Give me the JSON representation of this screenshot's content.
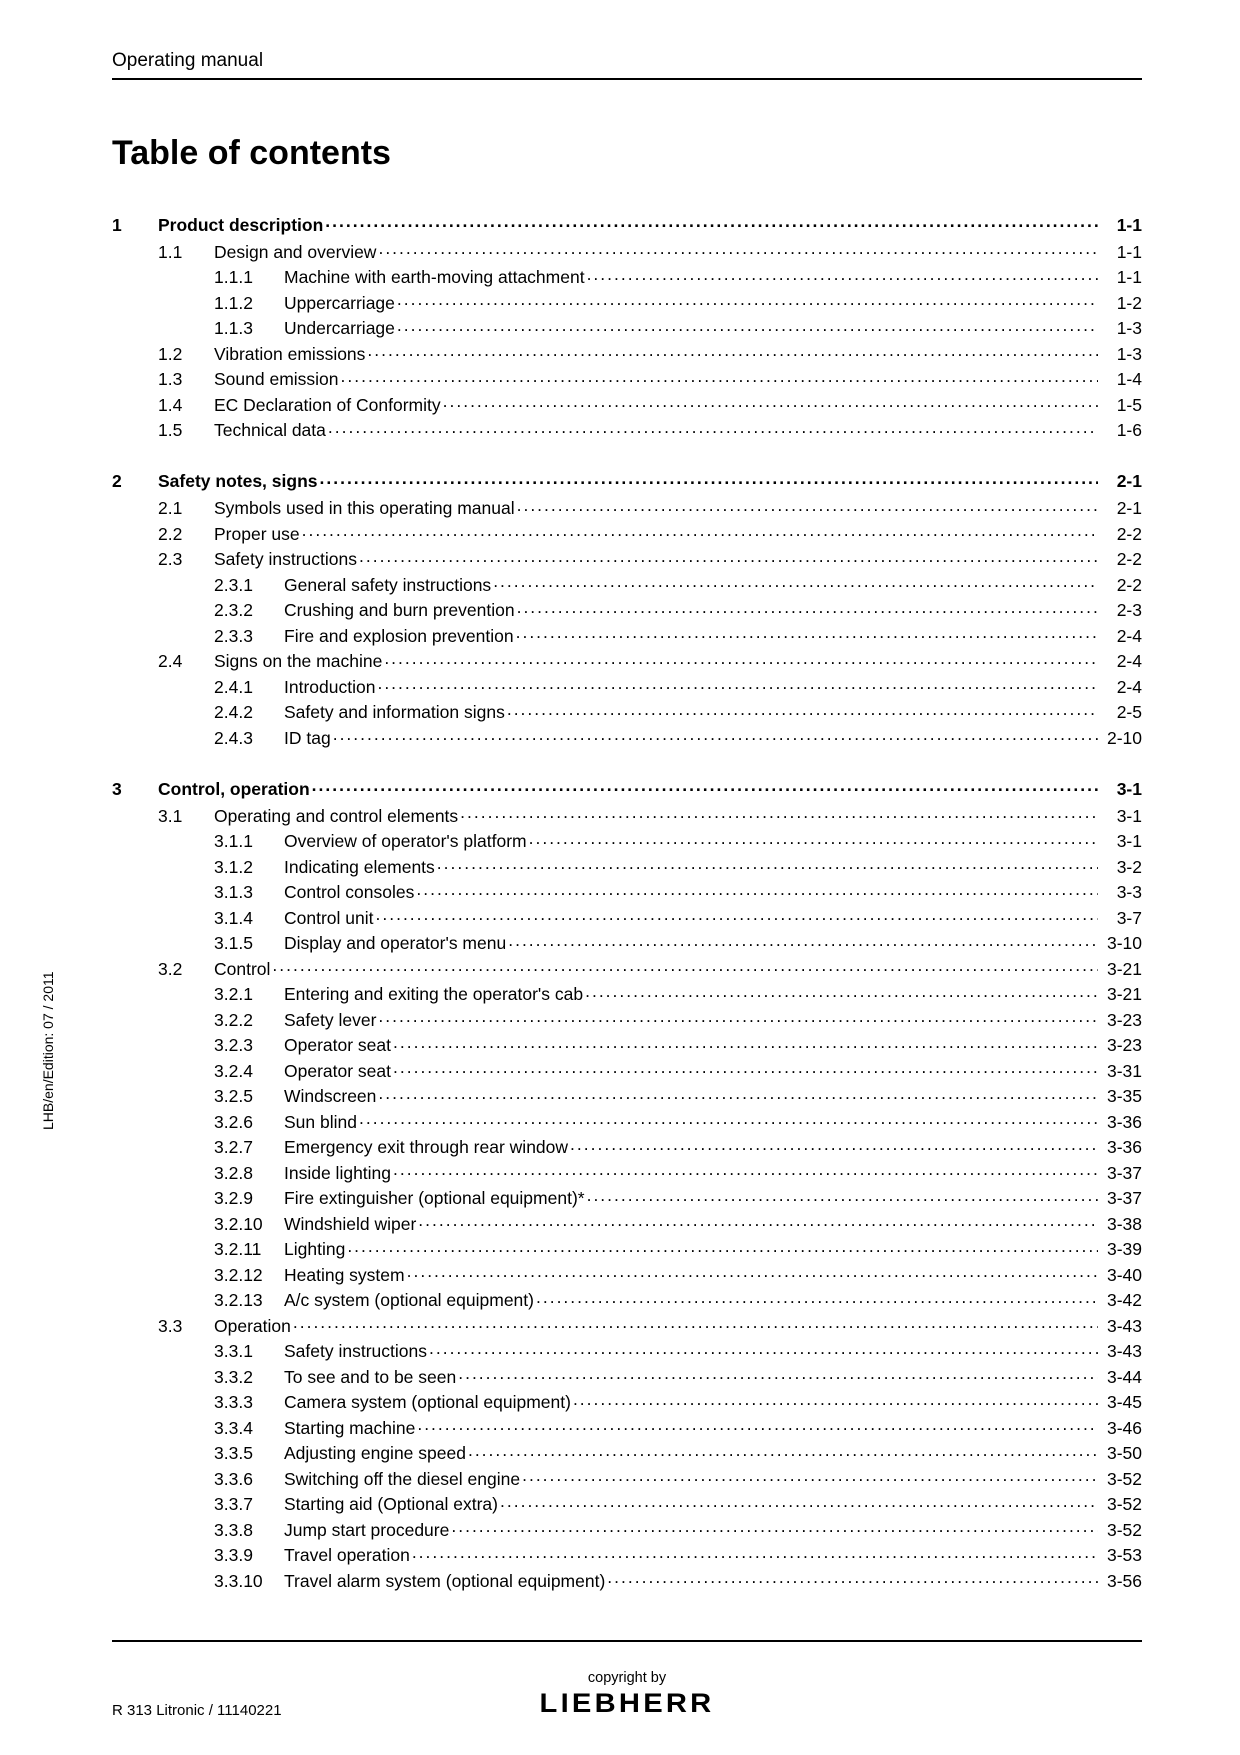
{
  "header": "Operating manual",
  "title": "Table of contents",
  "side_text": "LHB/en/Edition: 07 / 2011",
  "footer": {
    "left": "R 313 Litronic / 11140221",
    "copyright": "copyright by",
    "brand": "LIEBHERR"
  },
  "toc": [
    {
      "level": 1,
      "num": "1",
      "label": "Product description",
      "page": "1-1"
    },
    {
      "level": 2,
      "num": "1.1",
      "label": "Design and overview",
      "page": "1-1"
    },
    {
      "level": 3,
      "num": "1.1.1",
      "label": "Machine with earth-moving attachment",
      "page": "1-1"
    },
    {
      "level": 3,
      "num": "1.1.2",
      "label": "Uppercarriage",
      "page": "1-2"
    },
    {
      "level": 3,
      "num": "1.1.3",
      "label": "Undercarriage",
      "page": "1-3"
    },
    {
      "level": 2,
      "num": "1.2",
      "label": "Vibration emissions",
      "page": "1-3"
    },
    {
      "level": 2,
      "num": "1.3",
      "label": "Sound emission",
      "page": "1-4"
    },
    {
      "level": 2,
      "num": "1.4",
      "label": "EC Declaration of Conformity",
      "page": "1-5"
    },
    {
      "level": 2,
      "num": "1.5",
      "label": "Technical data",
      "page": "1-6"
    },
    {
      "level": 1,
      "num": "2",
      "label": "Safety notes, signs",
      "page": "2-1"
    },
    {
      "level": 2,
      "num": "2.1",
      "label": "Symbols used in this operating manual",
      "page": "2-1"
    },
    {
      "level": 2,
      "num": "2.2",
      "label": "Proper use",
      "page": "2-2"
    },
    {
      "level": 2,
      "num": "2.3",
      "label": "Safety instructions",
      "page": "2-2"
    },
    {
      "level": 3,
      "num": "2.3.1",
      "label": "General safety instructions",
      "page": "2-2"
    },
    {
      "level": 3,
      "num": "2.3.2",
      "label": "Crushing and burn prevention",
      "page": "2-3"
    },
    {
      "level": 3,
      "num": "2.3.3",
      "label": "Fire and explosion prevention",
      "page": "2-4"
    },
    {
      "level": 2,
      "num": "2.4",
      "label": "Signs on the machine",
      "page": "2-4"
    },
    {
      "level": 3,
      "num": "2.4.1",
      "label": "Introduction",
      "page": "2-4"
    },
    {
      "level": 3,
      "num": "2.4.2",
      "label": "Safety and information signs",
      "page": "2-5"
    },
    {
      "level": 3,
      "num": "2.4.3",
      "label": "ID tag",
      "page": "2-10"
    },
    {
      "level": 1,
      "num": "3",
      "label": "Control, operation",
      "page": "3-1"
    },
    {
      "level": 2,
      "num": "3.1",
      "label": "Operating and control elements",
      "page": "3-1"
    },
    {
      "level": 3,
      "num": "3.1.1",
      "label": "Overview of operator's platform",
      "page": "3-1"
    },
    {
      "level": 3,
      "num": "3.1.2",
      "label": "Indicating elements",
      "page": "3-2"
    },
    {
      "level": 3,
      "num": "3.1.3",
      "label": "Control consoles",
      "page": "3-3"
    },
    {
      "level": 3,
      "num": "3.1.4",
      "label": "Control unit",
      "page": "3-7"
    },
    {
      "level": 3,
      "num": "3.1.5",
      "label": "Display and operator's menu",
      "page": "3-10"
    },
    {
      "level": 2,
      "num": "3.2",
      "label": "Control",
      "page": "3-21"
    },
    {
      "level": 3,
      "num": "3.2.1",
      "label": "Entering and exiting the operator's cab",
      "page": "3-21"
    },
    {
      "level": 3,
      "num": "3.2.2",
      "label": "Safety lever",
      "page": "3-23"
    },
    {
      "level": 3,
      "num": "3.2.3",
      "label": "Operator seat",
      "page": "3-23"
    },
    {
      "level": 3,
      "num": "3.2.4",
      "label": "Operator seat",
      "page": "3-31"
    },
    {
      "level": 3,
      "num": "3.2.5",
      "label": "Windscreen",
      "page": "3-35"
    },
    {
      "level": 3,
      "num": "3.2.6",
      "label": "Sun blind",
      "page": "3-36"
    },
    {
      "level": 3,
      "num": "3.2.7",
      "label": "Emergency exit through rear window",
      "page": "3-36"
    },
    {
      "level": 3,
      "num": "3.2.8",
      "label": "Inside lighting",
      "page": "3-37"
    },
    {
      "level": 3,
      "num": "3.2.9",
      "label": "Fire extinguisher (optional equipment)*",
      "page": "3-37"
    },
    {
      "level": 3,
      "num": "3.2.10",
      "label": "Windshield wiper",
      "page": "3-38"
    },
    {
      "level": 3,
      "num": "3.2.11",
      "label": "Lighting",
      "page": "3-39"
    },
    {
      "level": 3,
      "num": "3.2.12",
      "label": "Heating system",
      "page": "3-40"
    },
    {
      "level": 3,
      "num": "3.2.13",
      "label": "A/c system (optional equipment)",
      "page": "3-42"
    },
    {
      "level": 2,
      "num": "3.3",
      "label": "Operation",
      "page": "3-43"
    },
    {
      "level": 3,
      "num": "3.3.1",
      "label": "Safety instructions",
      "page": "3-43"
    },
    {
      "level": 3,
      "num": "3.3.2",
      "label": "To see and to be seen",
      "page": "3-44"
    },
    {
      "level": 3,
      "num": "3.3.3",
      "label": "Camera system (optional equipment)",
      "page": "3-45"
    },
    {
      "level": 3,
      "num": "3.3.4",
      "label": "Starting machine",
      "page": "3-46"
    },
    {
      "level": 3,
      "num": "3.3.5",
      "label": "Adjusting engine speed",
      "page": "3-50"
    },
    {
      "level": 3,
      "num": "3.3.6",
      "label": "Switching off the diesel engine",
      "page": "3-52"
    },
    {
      "level": 3,
      "num": "3.3.7",
      "label": "Starting aid (Optional extra)",
      "page": "3-52"
    },
    {
      "level": 3,
      "num": "3.3.8",
      "label": "Jump start procedure",
      "page": "3-52"
    },
    {
      "level": 3,
      "num": "3.3.9",
      "label": "Travel operation",
      "page": "3-53"
    },
    {
      "level": 3,
      "num": "3.3.10",
      "label": "Travel alarm system (optional equipment)",
      "page": "3-56"
    }
  ]
}
